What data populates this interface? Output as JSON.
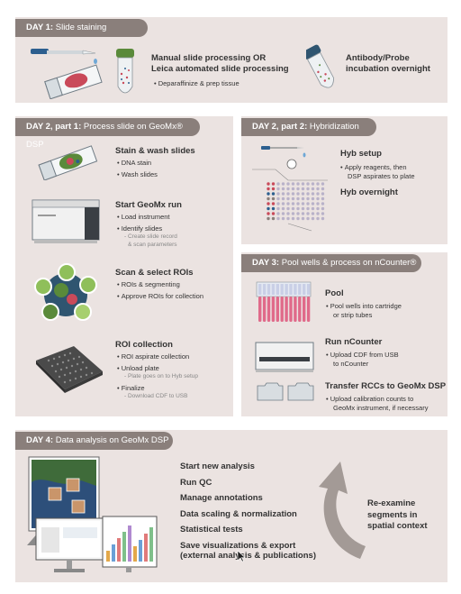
{
  "day1": {
    "tab_day": "DAY 1:",
    "tab_title": "Slide staining",
    "manual_title_1": "Manual slide processing OR",
    "manual_title_2": "Leica automated slide processing",
    "manual_bullet": "Deparaffinize & prep tissue",
    "antibody_title_1": "Antibody/Probe",
    "antibody_title_2": "incubation overnight"
  },
  "day2p1": {
    "tab_day": "DAY 2, part 1:",
    "tab_title": "Process slide on GeoMx® DSP",
    "stain_title": "Stain & wash slides",
    "stain_bullets": [
      "DNA stain",
      "Wash slides"
    ],
    "start_title": "Start GeoMx run",
    "start_bullets": [
      "Load instrument",
      "Identify slides"
    ],
    "start_sub": [
      "Create slide record",
      "& scan parameters"
    ],
    "scan_title": "Scan & select ROIs",
    "scan_bullets": [
      "ROIs & segmenting",
      "Approve ROIs for collection"
    ],
    "roi_title": "ROI collection",
    "roi_bullets": [
      "ROI aspirate collection",
      "Unload plate",
      "Finalize"
    ],
    "roi_sub_unload": "Plate goes on to Hyb setup",
    "roi_sub_finalize": "Download CDF to USB"
  },
  "day2p2": {
    "tab_day": "DAY 2, part 2:",
    "tab_title": "Hybridization",
    "hyb_title": "Hyb setup",
    "hyb_bullet_1": "Apply reagents, then",
    "hyb_bullet_2": "DSP aspirates to plate",
    "hyb_overnight": "Hyb overnight"
  },
  "day3": {
    "tab_day": "DAY 3:",
    "tab_title": "Pool wells & process on nCounter®",
    "pool_title": "Pool",
    "pool_bullet_1": "Pool wells into cartridge",
    "pool_bullet_2": "or strip tubes",
    "run_title": "Run nCounter",
    "run_bullet_1": "Upload CDF from USB",
    "run_bullet_2": "to nCounter",
    "transfer_title": "Transfer RCCs to GeoMx DSP",
    "transfer_bullet_1": "Upload calibration counts to",
    "transfer_bullet_2": "GeoMx instrument, if necessary"
  },
  "day4": {
    "tab_day": "DAY 4:",
    "tab_title": "Data analysis on GeoMx DSP",
    "steps": [
      "Start new analysis",
      "Run QC",
      "Manage annotations",
      "Data scaling & normalization",
      "Statistical tests",
      "Save visualizations & export"
    ],
    "steps_last_line2": "(external analysis & publications)",
    "reexamine_1": "Re-examine",
    "reexamine_2": "segments in",
    "reexamine_3": "spatial context"
  },
  "colors": {
    "panel": "#ebe3e1",
    "tab": "#8a7f7b",
    "tube_cap_green": "#5a8a3a",
    "tube_cap_blue": "#2f5570",
    "pipette_blue": "#2c5f8f",
    "tissue_red": "#c94a5a",
    "arrow_gray": "#a39a96"
  }
}
